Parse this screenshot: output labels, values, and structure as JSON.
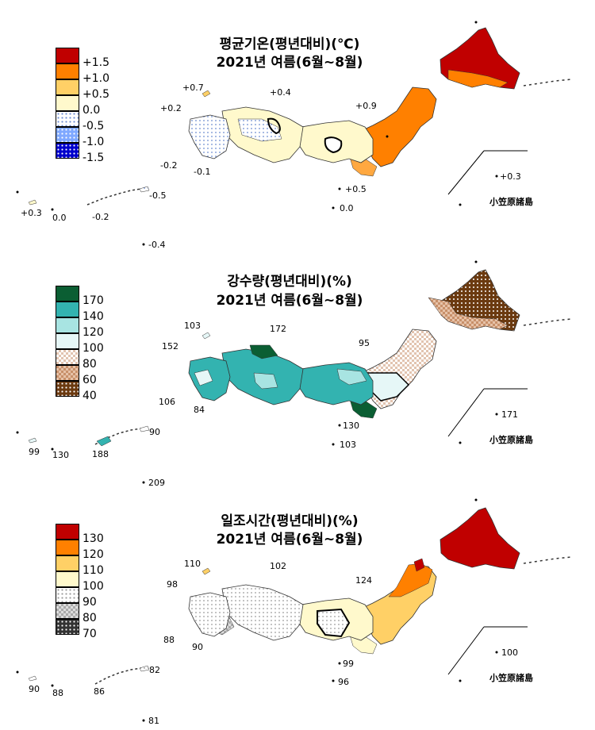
{
  "panels": [
    {
      "title_line1": "평균기온(평년대비)(℃)",
      "title_line2": "2021년 여름(6월~8월)",
      "legend": [
        {
          "label": "+1.5",
          "color": "#c00000",
          "pattern": "none"
        },
        {
          "label": "+1.0",
          "color": "#ff8000",
          "pattern": "none"
        },
        {
          "label": "+0.5",
          "color": "#ffd066",
          "pattern": "none"
        },
        {
          "label": "0.0",
          "color": "#fff9cc",
          "pattern": "none"
        },
        {
          "label": "-0.5",
          "color": "#ffffff",
          "pattern": "dots-blue"
        },
        {
          "label": "-1.0",
          "color": "#7fa8ff",
          "pattern": "dots-white"
        },
        {
          "label": "-1.5",
          "color": "#0000cc",
          "pattern": "dots-white"
        }
      ],
      "values": {
        "v1": "+0.7",
        "v2": "+0.4",
        "v3": "+0.2",
        "v4": "+0.9",
        "v5": "-0.2",
        "v6": "-0.1",
        "v7": "+0.5",
        "v8": "0.0",
        "v9": "+0.3",
        "v10": "0.0",
        "v11": "-0.2",
        "v12": "-0.5",
        "v13": "+0.3",
        "v14": "-0.4"
      },
      "islands": "小笠原諸島"
    },
    {
      "title_line1": "강수량(평년대비)(%)",
      "title_line2": "2021년 여름(6월~8월)",
      "legend": [
        {
          "label": "170",
          "color": "#0b5e33",
          "pattern": "none"
        },
        {
          "label": "140",
          "color": "#33b3b0",
          "pattern": "none"
        },
        {
          "label": "120",
          "color": "#a8e4e2",
          "pattern": "none"
        },
        {
          "label": "100",
          "color": "#e6f7f7",
          "pattern": "none"
        },
        {
          "label": "80",
          "color": "#ffffff",
          "pattern": "check-brown"
        },
        {
          "label": "60",
          "color": "#c8906a",
          "pattern": "check-white"
        },
        {
          "label": "40",
          "color": "#6b3a10",
          "pattern": "dots-white"
        }
      ],
      "values": {
        "v1": "103",
        "v2": "172",
        "v3": "152",
        "v4": "95",
        "v5": "106",
        "v6": "84",
        "v7": "130",
        "v8": "103",
        "v9": "171",
        "v10": "99",
        "v11": "130",
        "v12": "188",
        "v13": "90",
        "v14": "209"
      },
      "islands": "小笠原諸島"
    },
    {
      "title_line1": "일조시간(평년대비)(%)",
      "title_line2": "2021년 여름(6월~8월)",
      "legend": [
        {
          "label": "130",
          "color": "#c00000",
          "pattern": "none"
        },
        {
          "label": "120",
          "color": "#ff8000",
          "pattern": "none"
        },
        {
          "label": "110",
          "color": "#ffd066",
          "pattern": "none"
        },
        {
          "label": "100",
          "color": "#fff9cc",
          "pattern": "none"
        },
        {
          "label": "90",
          "color": "#ffffff",
          "pattern": "dots-grey"
        },
        {
          "label": "80",
          "color": "#bbbbbb",
          "pattern": "check-grey"
        },
        {
          "label": "70",
          "color": "#333333",
          "pattern": "dots-white"
        }
      ],
      "values": {
        "v1": "110",
        "v2": "102",
        "v3": "98",
        "v4": "124",
        "v5": "88",
        "v6": "90",
        "v7": "99",
        "v8": "96",
        "v9": "100",
        "v10": "90",
        "v11": "88",
        "v12": "86",
        "v13": "82",
        "v14": "81"
      },
      "islands": "小笠原諸島"
    }
  ]
}
